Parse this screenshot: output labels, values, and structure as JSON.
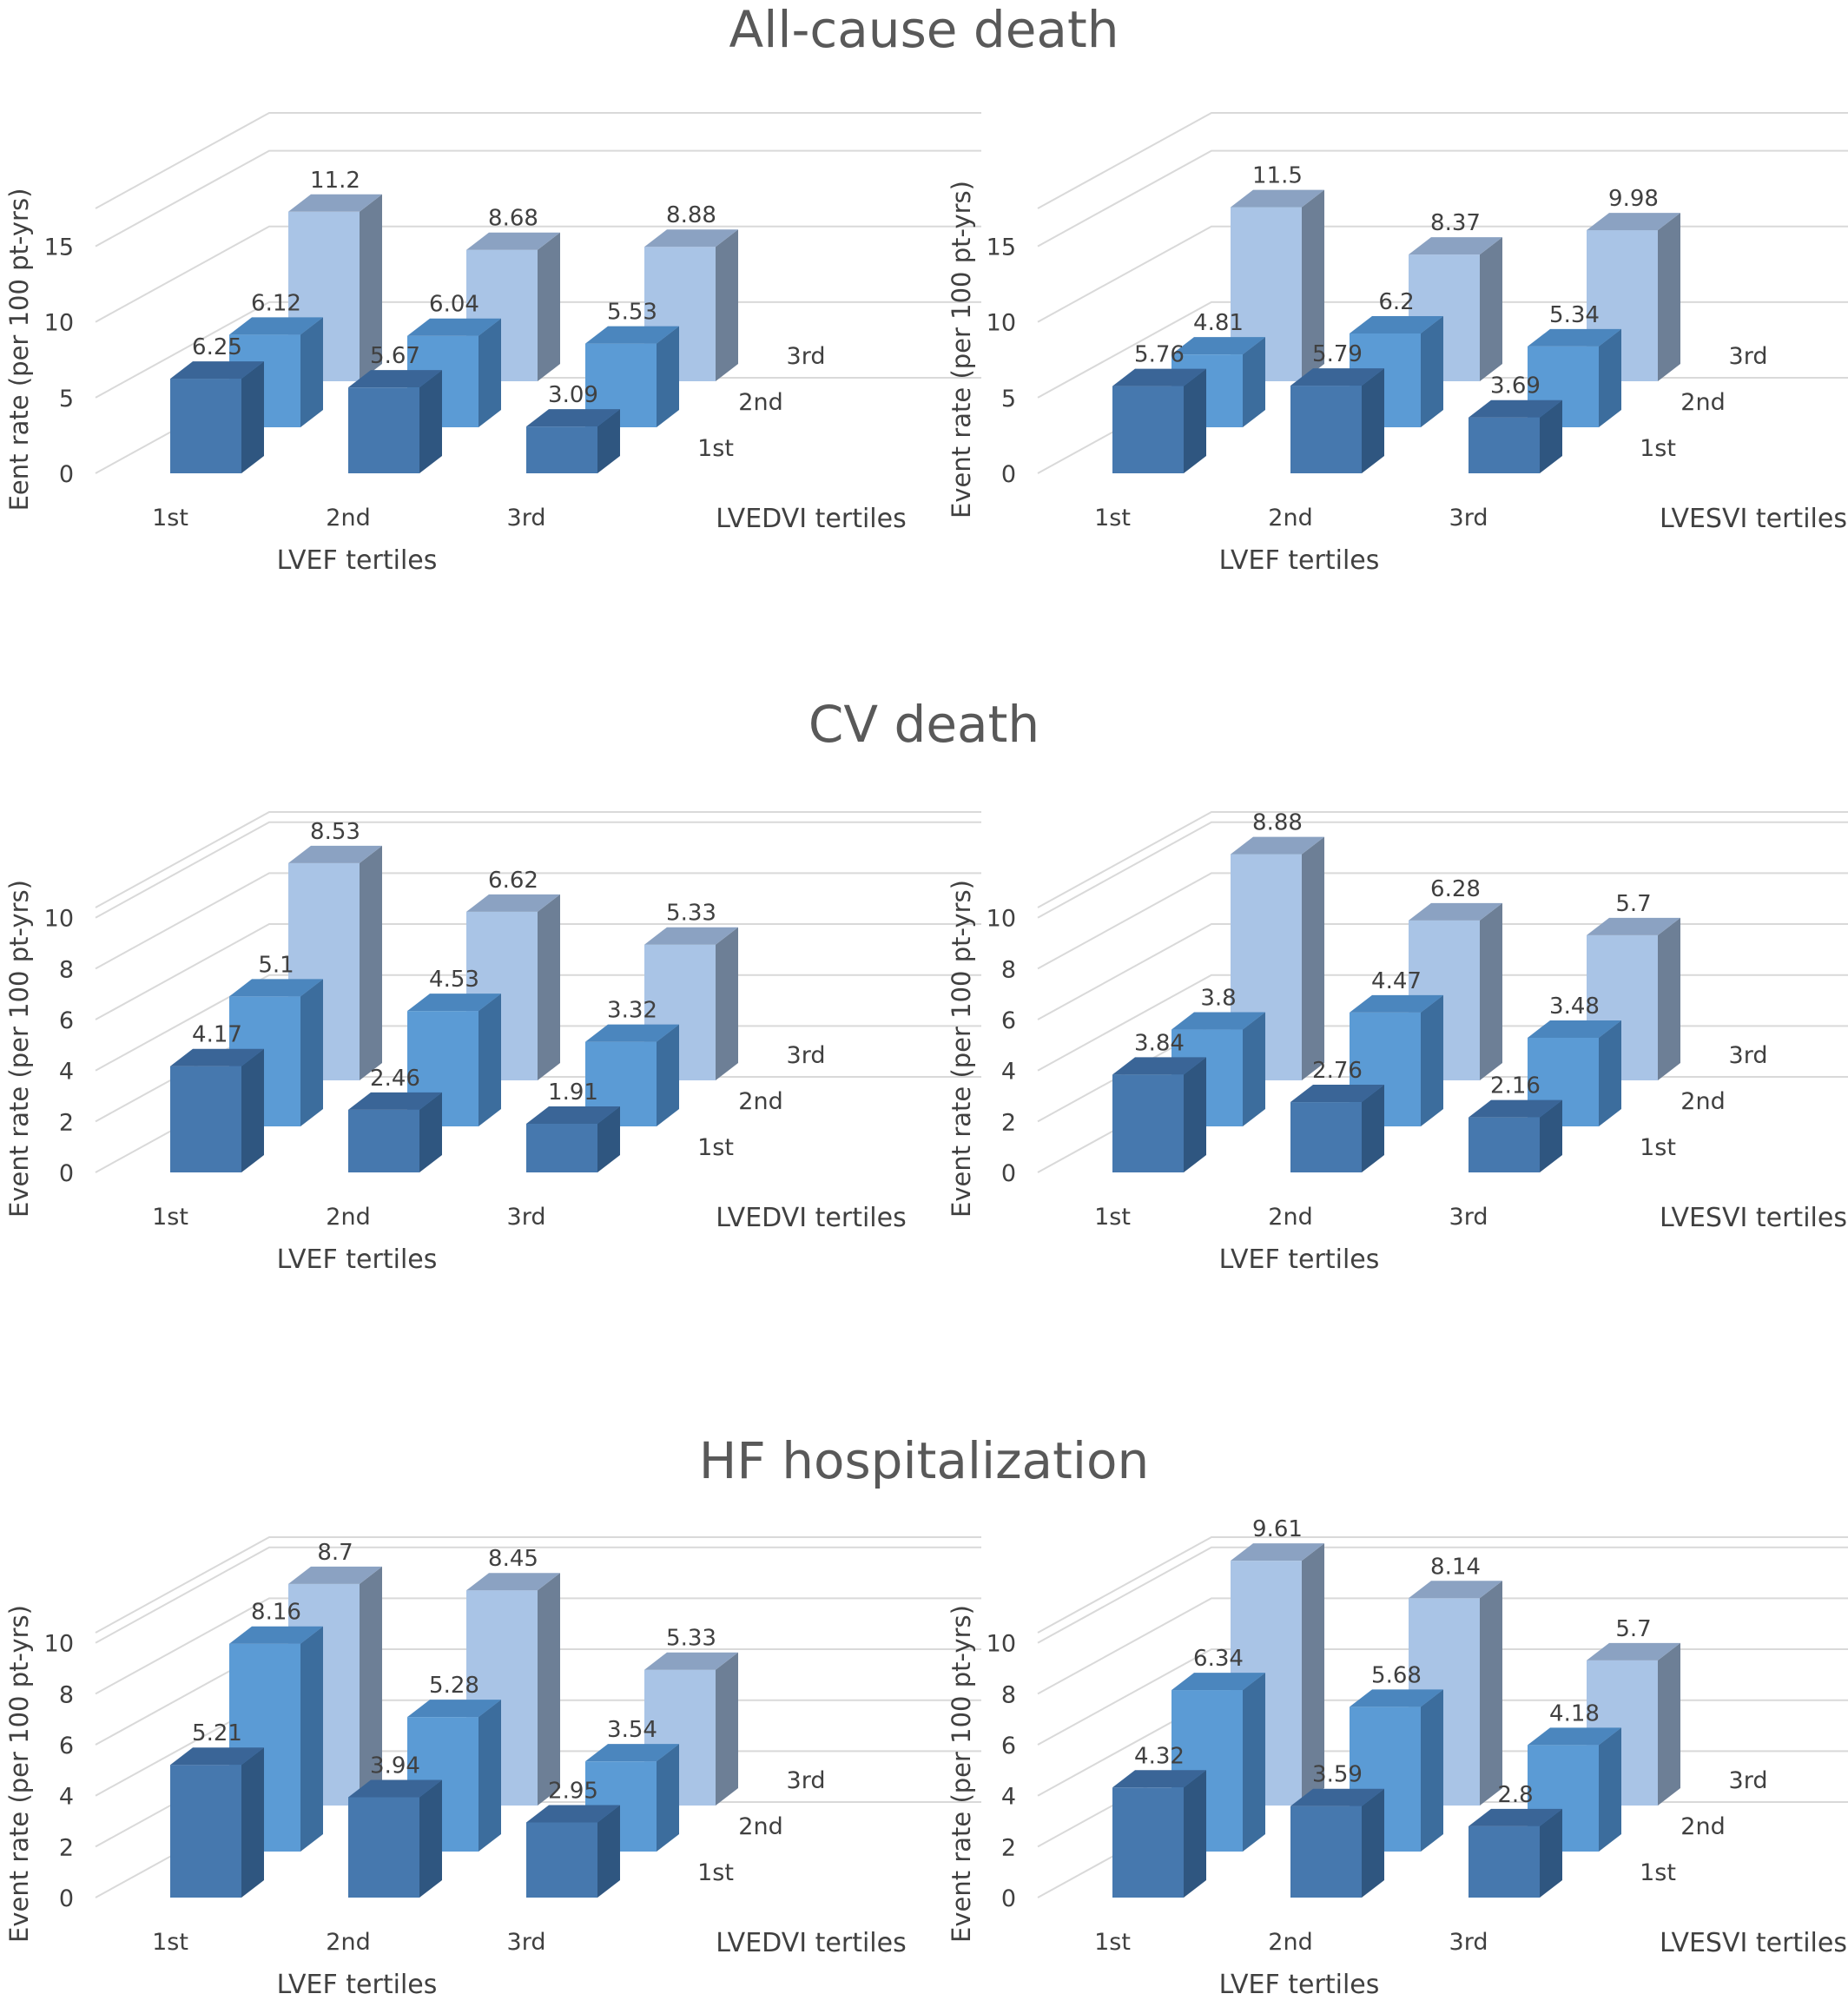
{
  "sections": [
    {
      "title": "All-cause death"
    },
    {
      "title": "CV death"
    },
    {
      "title": "HF hospitalization"
    }
  ],
  "colors": {
    "series_1st": {
      "front": "#4678ae",
      "side": "#2f5680",
      "top": "#3a6597"
    },
    "series_2nd": {
      "front": "#5b9bd5",
      "side": "#3c6d9d",
      "top": "#4b86be"
    },
    "series_3rd": {
      "front": "#a9c4e6",
      "side": "#6d7f96",
      "top": "#8ba2c2"
    },
    "grid": "#d9d9d9",
    "text": "#404040"
  },
  "chart_data": [
    {
      "type": "bar",
      "variant": "3d-column",
      "section": "All-cause death",
      "ylabel": "Eent rate (per 100 pt-yrs)",
      "xlabel": "LVEF tertiles",
      "zlabel": "LVEDVI tertiles",
      "categories": [
        "1st",
        "2nd",
        "3rd"
      ],
      "yticks": [
        0,
        5,
        10,
        15
      ],
      "ylim": [
        0,
        17.5
      ],
      "series": [
        {
          "name": "1st",
          "values": [
            6.25,
            5.67,
            3.09
          ]
        },
        {
          "name": "2nd",
          "values": [
            6.12,
            6.04,
            5.53
          ]
        },
        {
          "name": "3rd",
          "values": [
            11.2,
            8.68,
            8.88
          ]
        }
      ]
    },
    {
      "type": "bar",
      "variant": "3d-column",
      "section": "All-cause death",
      "ylabel": "Event rate (per 100 pt-yrs)",
      "xlabel": "LVEF tertiles",
      "zlabel": "LVESVI tertiles",
      "categories": [
        "1st",
        "2nd",
        "3rd"
      ],
      "yticks": [
        0,
        5,
        10,
        15
      ],
      "ylim": [
        0,
        17.5
      ],
      "series": [
        {
          "name": "1st",
          "values": [
            5.76,
            5.79,
            3.69
          ]
        },
        {
          "name": "2nd",
          "values": [
            4.81,
            6.2,
            5.34
          ]
        },
        {
          "name": "3rd",
          "values": [
            11.5,
            8.37,
            9.98
          ]
        }
      ]
    },
    {
      "type": "bar",
      "variant": "3d-column",
      "section": "CV death",
      "ylabel": "Event rate (per 100 pt-yrs)",
      "xlabel": "LVEF tertiles",
      "zlabel": "LVEDVI tertiles",
      "categories": [
        "1st",
        "2nd",
        "3rd"
      ],
      "yticks": [
        0,
        2,
        4,
        6,
        8,
        10
      ],
      "ylim": [
        0,
        10.4
      ],
      "series": [
        {
          "name": "1st",
          "values": [
            4.17,
            2.46,
            1.91
          ]
        },
        {
          "name": "2nd",
          "values": [
            5.1,
            4.53,
            3.32
          ]
        },
        {
          "name": "3rd",
          "values": [
            8.53,
            6.62,
            5.33
          ]
        }
      ]
    },
    {
      "type": "bar",
      "variant": "3d-column",
      "section": "CV death",
      "ylabel": "Event rate (per 100 pt-yrs)",
      "xlabel": "LVEF tertiles",
      "zlabel": "LVESVI tertiles",
      "categories": [
        "1st",
        "2nd",
        "3rd"
      ],
      "yticks": [
        0,
        2,
        4,
        6,
        8,
        10
      ],
      "ylim": [
        0,
        10.4
      ],
      "series": [
        {
          "name": "1st",
          "values": [
            3.84,
            2.76,
            2.16
          ]
        },
        {
          "name": "2nd",
          "values": [
            3.8,
            4.47,
            3.48
          ]
        },
        {
          "name": "3rd",
          "values": [
            8.88,
            6.28,
            5.7
          ]
        }
      ]
    },
    {
      "type": "bar",
      "variant": "3d-column",
      "section": "HF hospitalization",
      "ylabel": "Event rate (per 100 pt-yrs)",
      "xlabel": "LVEF tertiles",
      "zlabel": "LVEDVI tertiles",
      "categories": [
        "1st",
        "2nd",
        "3rd"
      ],
      "yticks": [
        0,
        2,
        4,
        6,
        8,
        10
      ],
      "ylim": [
        0,
        10.4
      ],
      "series": [
        {
          "name": "1st",
          "values": [
            5.21,
            3.94,
            2.95
          ]
        },
        {
          "name": "2nd",
          "values": [
            8.16,
            5.28,
            3.54
          ]
        },
        {
          "name": "3rd",
          "values": [
            8.7,
            8.45,
            5.33
          ]
        }
      ]
    },
    {
      "type": "bar",
      "variant": "3d-column",
      "section": "HF hospitalization",
      "ylabel": "Event rate (per 100 pt-yrs)",
      "xlabel": "LVEF tertiles",
      "zlabel": "LVESVI tertiles",
      "categories": [
        "1st",
        "2nd",
        "3rd"
      ],
      "yticks": [
        0,
        2,
        4,
        6,
        8,
        10
      ],
      "ylim": [
        0,
        10.4
      ],
      "series": [
        {
          "name": "1st",
          "values": [
            4.32,
            3.59,
            2.8
          ]
        },
        {
          "name": "2nd",
          "values": [
            6.34,
            5.68,
            4.18
          ]
        },
        {
          "name": "3rd",
          "values": [
            9.61,
            8.14,
            5.7
          ]
        }
      ]
    }
  ]
}
